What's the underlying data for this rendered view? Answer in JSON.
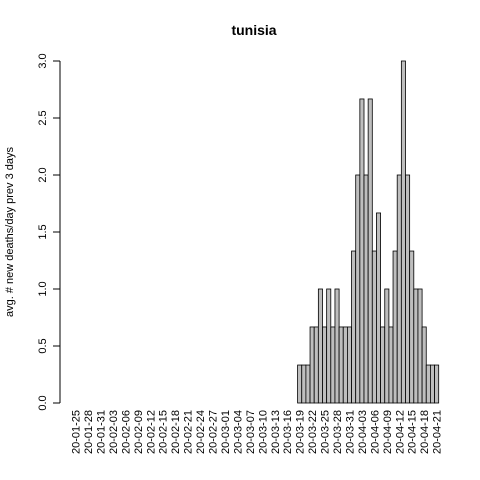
{
  "chart_data": {
    "type": "bar",
    "title": "tunisia",
    "xlabel": "",
    "ylabel": "avg. # new deaths/day prev  3  days",
    "ylim": [
      0,
      3.0
    ],
    "y_ticks": [
      "0.0",
      "0.5",
      "1.0",
      "1.5",
      "2.0",
      "2.5",
      "3.0"
    ],
    "x_tick_labels": [
      "20-01-25",
      "20-01-28",
      "20-01-31",
      "20-02-03",
      "20-02-06",
      "20-02-09",
      "20-02-12",
      "20-02-15",
      "20-02-18",
      "20-02-21",
      "20-02-24",
      "20-02-27",
      "20-03-01",
      "20-03-04",
      "20-03-07",
      "20-03-10",
      "20-03-13",
      "20-03-16",
      "20-03-19",
      "20-03-22",
      "20-03-25",
      "20-03-28",
      "20-03-31",
      "20-04-03",
      "20-04-06",
      "20-04-09",
      "20-04-12",
      "20-04-15",
      "20-04-18",
      "20-04-21"
    ],
    "categories": [
      "20-01-25",
      "20-01-26",
      "20-01-27",
      "20-01-28",
      "20-01-29",
      "20-01-30",
      "20-01-31",
      "20-02-01",
      "20-02-02",
      "20-02-03",
      "20-02-04",
      "20-02-05",
      "20-02-06",
      "20-02-07",
      "20-02-08",
      "20-02-09",
      "20-02-10",
      "20-02-11",
      "20-02-12",
      "20-02-13",
      "20-02-14",
      "20-02-15",
      "20-02-16",
      "20-02-17",
      "20-02-18",
      "20-02-19",
      "20-02-20",
      "20-02-21",
      "20-02-22",
      "20-02-23",
      "20-02-24",
      "20-02-25",
      "20-02-26",
      "20-02-27",
      "20-02-28",
      "20-02-29",
      "20-03-01",
      "20-03-02",
      "20-03-03",
      "20-03-04",
      "20-03-05",
      "20-03-06",
      "20-03-07",
      "20-03-08",
      "20-03-09",
      "20-03-10",
      "20-03-11",
      "20-03-12",
      "20-03-13",
      "20-03-14",
      "20-03-15",
      "20-03-16",
      "20-03-17",
      "20-03-18",
      "20-03-19",
      "20-03-20",
      "20-03-21",
      "20-03-22",
      "20-03-23",
      "20-03-24",
      "20-03-25",
      "20-03-26",
      "20-03-27",
      "20-03-28",
      "20-03-29",
      "20-03-30",
      "20-03-31",
      "20-04-01",
      "20-04-02",
      "20-04-03",
      "20-04-04",
      "20-04-05",
      "20-04-06",
      "20-04-07",
      "20-04-08",
      "20-04-09",
      "20-04-10",
      "20-04-11",
      "20-04-12",
      "20-04-13",
      "20-04-14",
      "20-04-15",
      "20-04-16",
      "20-04-17",
      "20-04-18",
      "20-04-19",
      "20-04-20",
      "20-04-21"
    ],
    "values": [
      0,
      0,
      0,
      0,
      0,
      0,
      0,
      0,
      0,
      0,
      0,
      0,
      0,
      0,
      0,
      0,
      0,
      0,
      0,
      0,
      0,
      0,
      0,
      0,
      0,
      0,
      0,
      0,
      0,
      0,
      0,
      0,
      0,
      0,
      0,
      0,
      0,
      0,
      0,
      0,
      0,
      0,
      0,
      0,
      0,
      0,
      0,
      0,
      0,
      0,
      0,
      0,
      0,
      0,
      0.333,
      0.333,
      0.333,
      0.667,
      0.667,
      1.0,
      0.667,
      1.0,
      0.667,
      1.0,
      0.667,
      0.667,
      0.667,
      1.333,
      2.0,
      2.667,
      2.0,
      2.667,
      1.333,
      1.667,
      0.667,
      1.0,
      0.667,
      1.333,
      2.0,
      3.0,
      2.0,
      1.333,
      1.0,
      1.0,
      0.667,
      0.333,
      0.333,
      0.333
    ],
    "grid": false,
    "legend": "none"
  }
}
